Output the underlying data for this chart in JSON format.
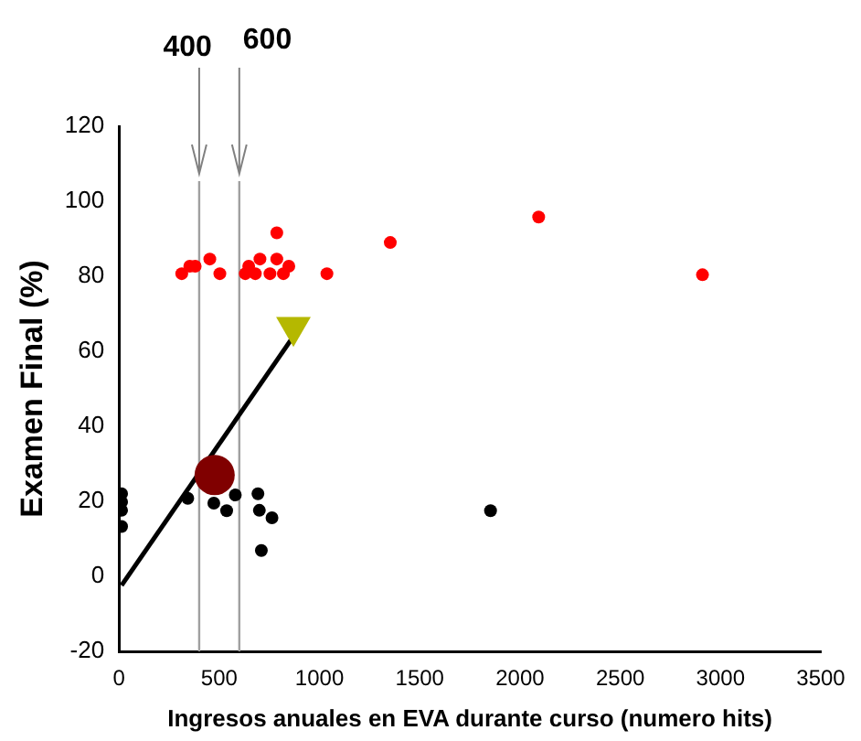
{
  "chart_data": {
    "type": "scatter",
    "xlabel": "Ingresos anuales en EVA durante curso (numero hits)",
    "ylabel": "Examen Final (%)",
    "xlim": [
      0,
      3500
    ],
    "xticks": [
      0,
      500,
      1000,
      1500,
      2000,
      2500,
      3000,
      3500
    ],
    "ylim": [
      -20,
      120
    ],
    "yticks": [
      -20,
      0,
      20,
      40,
      60,
      80,
      100,
      120
    ],
    "grid": false,
    "legend": false,
    "marker": "circle",
    "ref_lines": [
      {
        "axis": "x",
        "value": 400,
        "label": "400",
        "color": "#a0a0a0"
      },
      {
        "axis": "x",
        "value": 600,
        "label": "600",
        "color": "#a0a0a0"
      }
    ],
    "series": [
      {
        "color": "#ff0000",
        "x": [
          313,
          353,
          380,
          453,
          503,
          630,
          647,
          680,
          703,
          787,
          787,
          753,
          820,
          847,
          1037,
          1353,
          2093,
          2910
        ],
        "values": [
          80.7,
          82.7,
          82.7,
          84.6,
          80.7,
          80.7,
          82.7,
          80.7,
          84.6,
          91.6,
          84.6,
          80.7,
          80.7,
          82.7,
          80.7,
          89,
          95.8,
          80.4
        ]
      },
      {
        "color": "#000000",
        "x": [
          13,
          13,
          13,
          13,
          343,
          473,
          537,
          580,
          693,
          700,
          763,
          710,
          1853
        ],
        "values": [
          22,
          19.8,
          17.6,
          13.3,
          20.8,
          19.5,
          17.5,
          21.7,
          22,
          17.6,
          15.6,
          6.9,
          17.5
        ]
      },
      {
        "type": "line",
        "color": "#000000",
        "marker": "none",
        "x": [
          13,
          870
        ],
        "values": [
          -2.4,
          64
        ]
      },
      {
        "type": "bubble",
        "color": "#800000",
        "marker": "circle",
        "x": [
          477
        ],
        "values": [
          27
        ],
        "sizes": [
          1
        ]
      },
      {
        "type": "bubble",
        "color": "#b5b800",
        "marker": "triangle",
        "x": [
          870
        ],
        "values": [
          66.5
        ],
        "sizes": [
          0.41
        ]
      }
    ]
  }
}
